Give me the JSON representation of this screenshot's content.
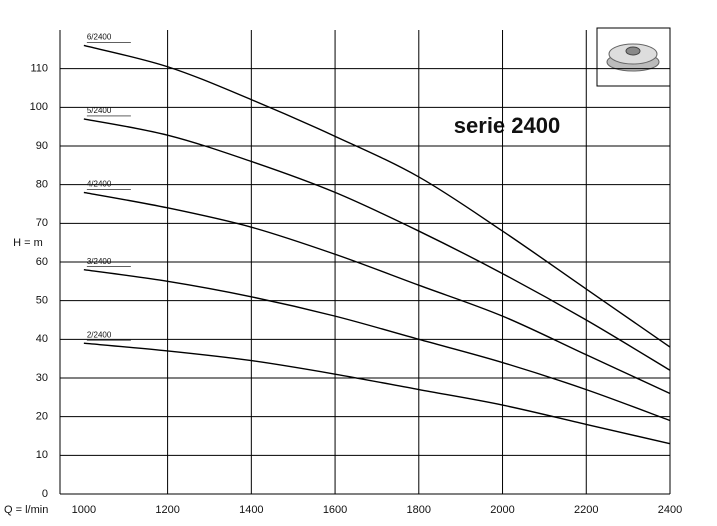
{
  "chart_data": {
    "type": "line",
    "title": "serie 2400",
    "x_label": "Q = l/min",
    "y_label": "H = m",
    "x": [
      1000,
      1200,
      1400,
      1600,
      1800,
      2000,
      2200,
      2400
    ],
    "series": [
      {
        "name": "6/2400",
        "color": "#000000",
        "values": [
          116,
          110.5,
          102,
          92.5,
          82,
          68,
          53,
          38
        ]
      },
      {
        "name": "5/2400",
        "color": "#000000",
        "values": [
          97,
          92.8,
          86,
          78,
          68,
          57,
          45,
          32
        ]
      },
      {
        "name": "4/2400",
        "color": "#000000",
        "values": [
          78,
          74,
          69,
          62,
          54,
          46,
          36,
          26
        ]
      },
      {
        "name": "3/2400",
        "color": "#000000",
        "values": [
          58,
          55,
          51,
          46,
          40,
          34,
          27,
          19
        ]
      },
      {
        "name": "2/2400",
        "color": "#000000",
        "values": [
          39,
          37,
          34.5,
          31,
          27,
          23,
          18,
          13
        ]
      }
    ],
    "xlim": [
      943,
      2400
    ],
    "ylim": [
      0,
      120
    ],
    "xticks": [
      1000,
      1200,
      1400,
      1600,
      1800,
      2000,
      2200,
      2400
    ],
    "yticks": [
      0,
      10,
      20,
      30,
      40,
      50,
      60,
      70,
      80,
      90,
      100,
      110
    ],
    "grid": true
  }
}
